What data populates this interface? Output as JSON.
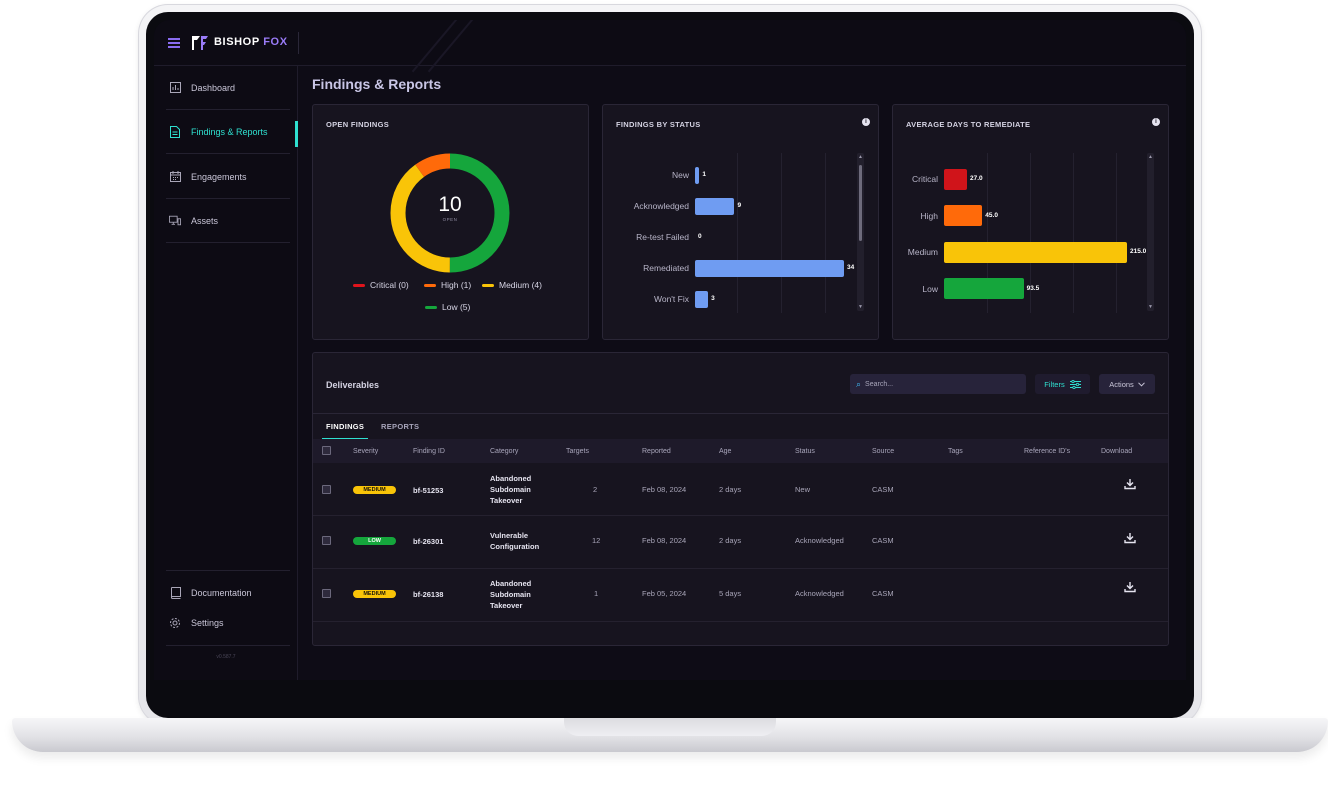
{
  "brand": {
    "name_part1": "BISHOP",
    "name_part2": "FOX"
  },
  "sidebar": {
    "items": [
      {
        "label": "Dashboard",
        "icon": "dashboard-icon"
      },
      {
        "label": "Findings & Reports",
        "icon": "report-icon"
      },
      {
        "label": "Engagements",
        "icon": "calendar-icon"
      },
      {
        "label": "Assets",
        "icon": "devices-icon"
      }
    ],
    "bottom_items": [
      {
        "label": "Documentation",
        "icon": "book-icon"
      },
      {
        "label": "Settings",
        "icon": "gear-icon"
      }
    ],
    "version": "v0.587.7"
  },
  "page_title": "Findings & Reports",
  "open_findings": {
    "title": "OPEN FINDINGS",
    "total": "10",
    "total_label": "OPEN",
    "legend": [
      {
        "label": "Critical (0)",
        "color": "#e0141c",
        "value": 0
      },
      {
        "label": "High (1)",
        "color": "#ff6a0a",
        "value": 1
      },
      {
        "label": "Medium (4)",
        "color": "#f9c408",
        "value": 4
      },
      {
        "label": "Low (5)",
        "color": "#15a63c",
        "value": 5
      }
    ]
  },
  "findings_by_status": {
    "title": "FINDINGS BY STATUS",
    "bars": [
      {
        "label": "New",
        "value": 1,
        "display": "1"
      },
      {
        "label": "Acknowledged",
        "value": 9,
        "display": "9"
      },
      {
        "label": "Re-test Failed",
        "value": 0,
        "display": "0"
      },
      {
        "label": "Remediated",
        "value": 34,
        "display": "34"
      },
      {
        "label": "Won't Fix",
        "value": 3,
        "display": "3"
      }
    ],
    "bar_color": "#6f9cf2"
  },
  "avg_days": {
    "title": "AVERAGE DAYS TO REMEDIATE",
    "bars": [
      {
        "label": "Critical",
        "value": 27.0,
        "display": "27.0",
        "color": "#d0141a"
      },
      {
        "label": "High",
        "value": 45.0,
        "display": "45.0",
        "color": "#ff6a0a"
      },
      {
        "label": "Medium",
        "value": 215.0,
        "display": "215.0",
        "color": "#f9c408"
      },
      {
        "label": "Low",
        "value": 93.5,
        "display": "93.5",
        "color": "#15a63c"
      }
    ]
  },
  "deliverables": {
    "title": "Deliverables",
    "search_placeholder": "Search...",
    "filters_label": "Filters",
    "actions_label": "Actions",
    "tabs": [
      "FINDINGS",
      "REPORTS"
    ],
    "columns": [
      "Severity",
      "Finding ID",
      "Category",
      "Targets",
      "Reported",
      "Age",
      "Status",
      "Source",
      "Tags",
      "Reference ID's",
      "Download"
    ],
    "rows": [
      {
        "severity": "MEDIUM",
        "id": "bf-51253",
        "category": "Abandoned Subdomain Takeover",
        "targets": "2",
        "reported": "Feb 08, 2024",
        "age": "2 days",
        "status": "New",
        "source": "CASM"
      },
      {
        "severity": "LOW",
        "id": "bf-26301",
        "category": "Vulnerable Configuration",
        "targets": "12",
        "reported": "Feb 08, 2024",
        "age": "2 days",
        "status": "Acknowledged",
        "source": "CASM"
      },
      {
        "severity": "MEDIUM",
        "id": "bf-26138",
        "category": "Abandoned Subdomain Takeover",
        "targets": "1",
        "reported": "Feb 05, 2024",
        "age": "5 days",
        "status": "Acknowledged",
        "source": "CASM"
      }
    ]
  },
  "colors": {
    "accent": "#2fe0d0",
    "brand_purple": "#9a7cf8",
    "medium_badge": "#f9c408",
    "low_badge": "#15a63c"
  }
}
